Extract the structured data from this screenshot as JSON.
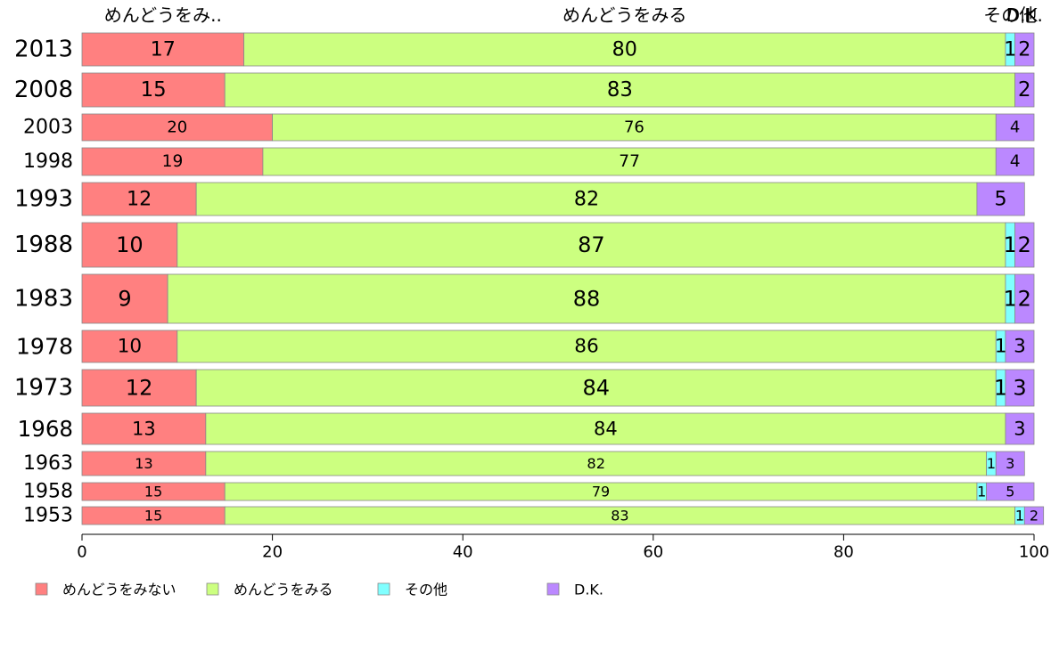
{
  "chart_data": {
    "type": "bar",
    "orientation": "horizontal",
    "stacked": true,
    "categories": [
      "2013",
      "2008",
      "2003",
      "1998",
      "1993",
      "1988",
      "1983",
      "1978",
      "1973",
      "1968",
      "1963",
      "1958",
      "1953"
    ],
    "series": [
      {
        "name": "めんどうをみない",
        "color": "#ff8080",
        "values": [
          17,
          15,
          20,
          19,
          12,
          10,
          9,
          10,
          12,
          13,
          13,
          15,
          15
        ]
      },
      {
        "name": "めんどうをみる",
        "color": "#ccff80",
        "values": [
          80,
          83,
          76,
          77,
          82,
          87,
          88,
          86,
          84,
          84,
          82,
          79,
          83
        ]
      },
      {
        "name": "その他",
        "color": "#80ffff",
        "values": [
          1,
          0,
          0,
          0,
          0,
          1,
          1,
          1,
          1,
          0,
          1,
          1,
          1
        ]
      },
      {
        "name": "D.K.",
        "color": "#bb88ff",
        "values": [
          2,
          2,
          4,
          4,
          5,
          2,
          2,
          3,
          3,
          3,
          3,
          5,
          2
        ]
      }
    ],
    "top_labels": [
      "めんどうをみ..",
      "めんどうをみる",
      "その他",
      "D.K."
    ],
    "xlim": [
      0,
      100
    ],
    "xticks": [
      0,
      20,
      40,
      60,
      80,
      100
    ],
    "grid": false,
    "legend_position": "bottom"
  }
}
